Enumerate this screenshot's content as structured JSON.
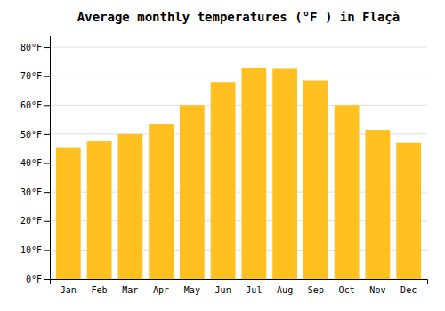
{
  "chart_data": {
    "type": "bar",
    "title": "Average monthly temperatures (°F ) in Flaçà",
    "categories": [
      "Jan",
      "Feb",
      "Mar",
      "Apr",
      "May",
      "Jun",
      "Jul",
      "Aug",
      "Sep",
      "Oct",
      "Nov",
      "Dec"
    ],
    "values": [
      45.5,
      47.5,
      50.0,
      53.5,
      60.0,
      68.0,
      73.0,
      72.5,
      68.5,
      60.0,
      51.5,
      47.0
    ],
    "color": "#FFC020",
    "ylim": [
      0,
      84
    ],
    "yticks": [
      {
        "value": 0,
        "label": "0°F"
      },
      {
        "value": 10,
        "label": "10°F"
      },
      {
        "value": 20,
        "label": "20°F"
      },
      {
        "value": 30,
        "label": "30°F"
      },
      {
        "value": 40,
        "label": "40°F"
      },
      {
        "value": 50,
        "label": "50°F"
      },
      {
        "value": 60,
        "label": "60°F"
      },
      {
        "value": 70,
        "label": "70°F"
      },
      {
        "value": 80,
        "label": "80°F"
      }
    ],
    "grid": true
  }
}
